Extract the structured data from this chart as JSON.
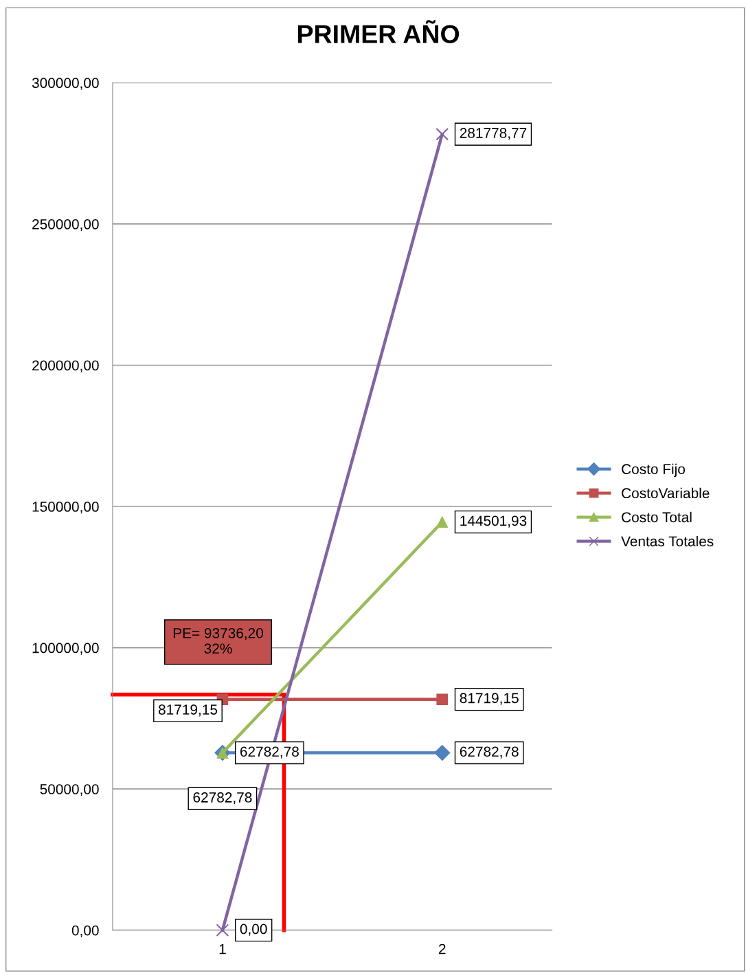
{
  "chart_data": {
    "type": "line",
    "title": "PRIMER AÑO",
    "x": [
      1,
      2
    ],
    "xlim": [
      0.5,
      2.5
    ],
    "xticks": [
      1,
      2
    ],
    "ylim": [
      0,
      300000
    ],
    "yticks": [
      {
        "value": 0,
        "label": "0,00"
      },
      {
        "value": 50000,
        "label": "50000,00"
      },
      {
        "value": 100000,
        "label": "100000,00"
      },
      {
        "value": 150000,
        "label": "150000,00"
      },
      {
        "value": 200000,
        "label": "200000,00"
      },
      {
        "value": 250000,
        "label": "250000,00"
      },
      {
        "value": 300000,
        "label": "300000,00"
      }
    ],
    "grid": "y",
    "legend": "right",
    "series": [
      {
        "name": "Costo Fijo",
        "color": "#4f81bd",
        "marker": "diamond",
        "values": [
          62782.78,
          62782.78
        ],
        "value_labels": [
          "62782,78",
          "62782,78"
        ]
      },
      {
        "name": "CostoVariable",
        "color": "#c0504d",
        "marker": "square",
        "values": [
          81719.15,
          81719.15
        ],
        "value_labels": [
          "81719,15",
          "81719,15"
        ]
      },
      {
        "name": "Costo Total",
        "color": "#9bbb59",
        "marker": "triangle",
        "values": [
          62782.78,
          144501.93
        ],
        "value_labels": [
          "62782,78",
          "144501,93"
        ]
      },
      {
        "name": "Ventas Totales",
        "color": "#8064a2",
        "marker": "cross",
        "values": [
          0,
          281778.77
        ],
        "value_labels": [
          "0,00",
          "281778,77"
        ]
      }
    ],
    "ref_lines": [
      {
        "axis": "y",
        "value": 83400,
        "color": "#ff0000"
      },
      {
        "axis": "x",
        "value": 1.28,
        "color": "#ff0000"
      }
    ],
    "annotations": [
      "PE= 93736,20\n32%"
    ]
  }
}
